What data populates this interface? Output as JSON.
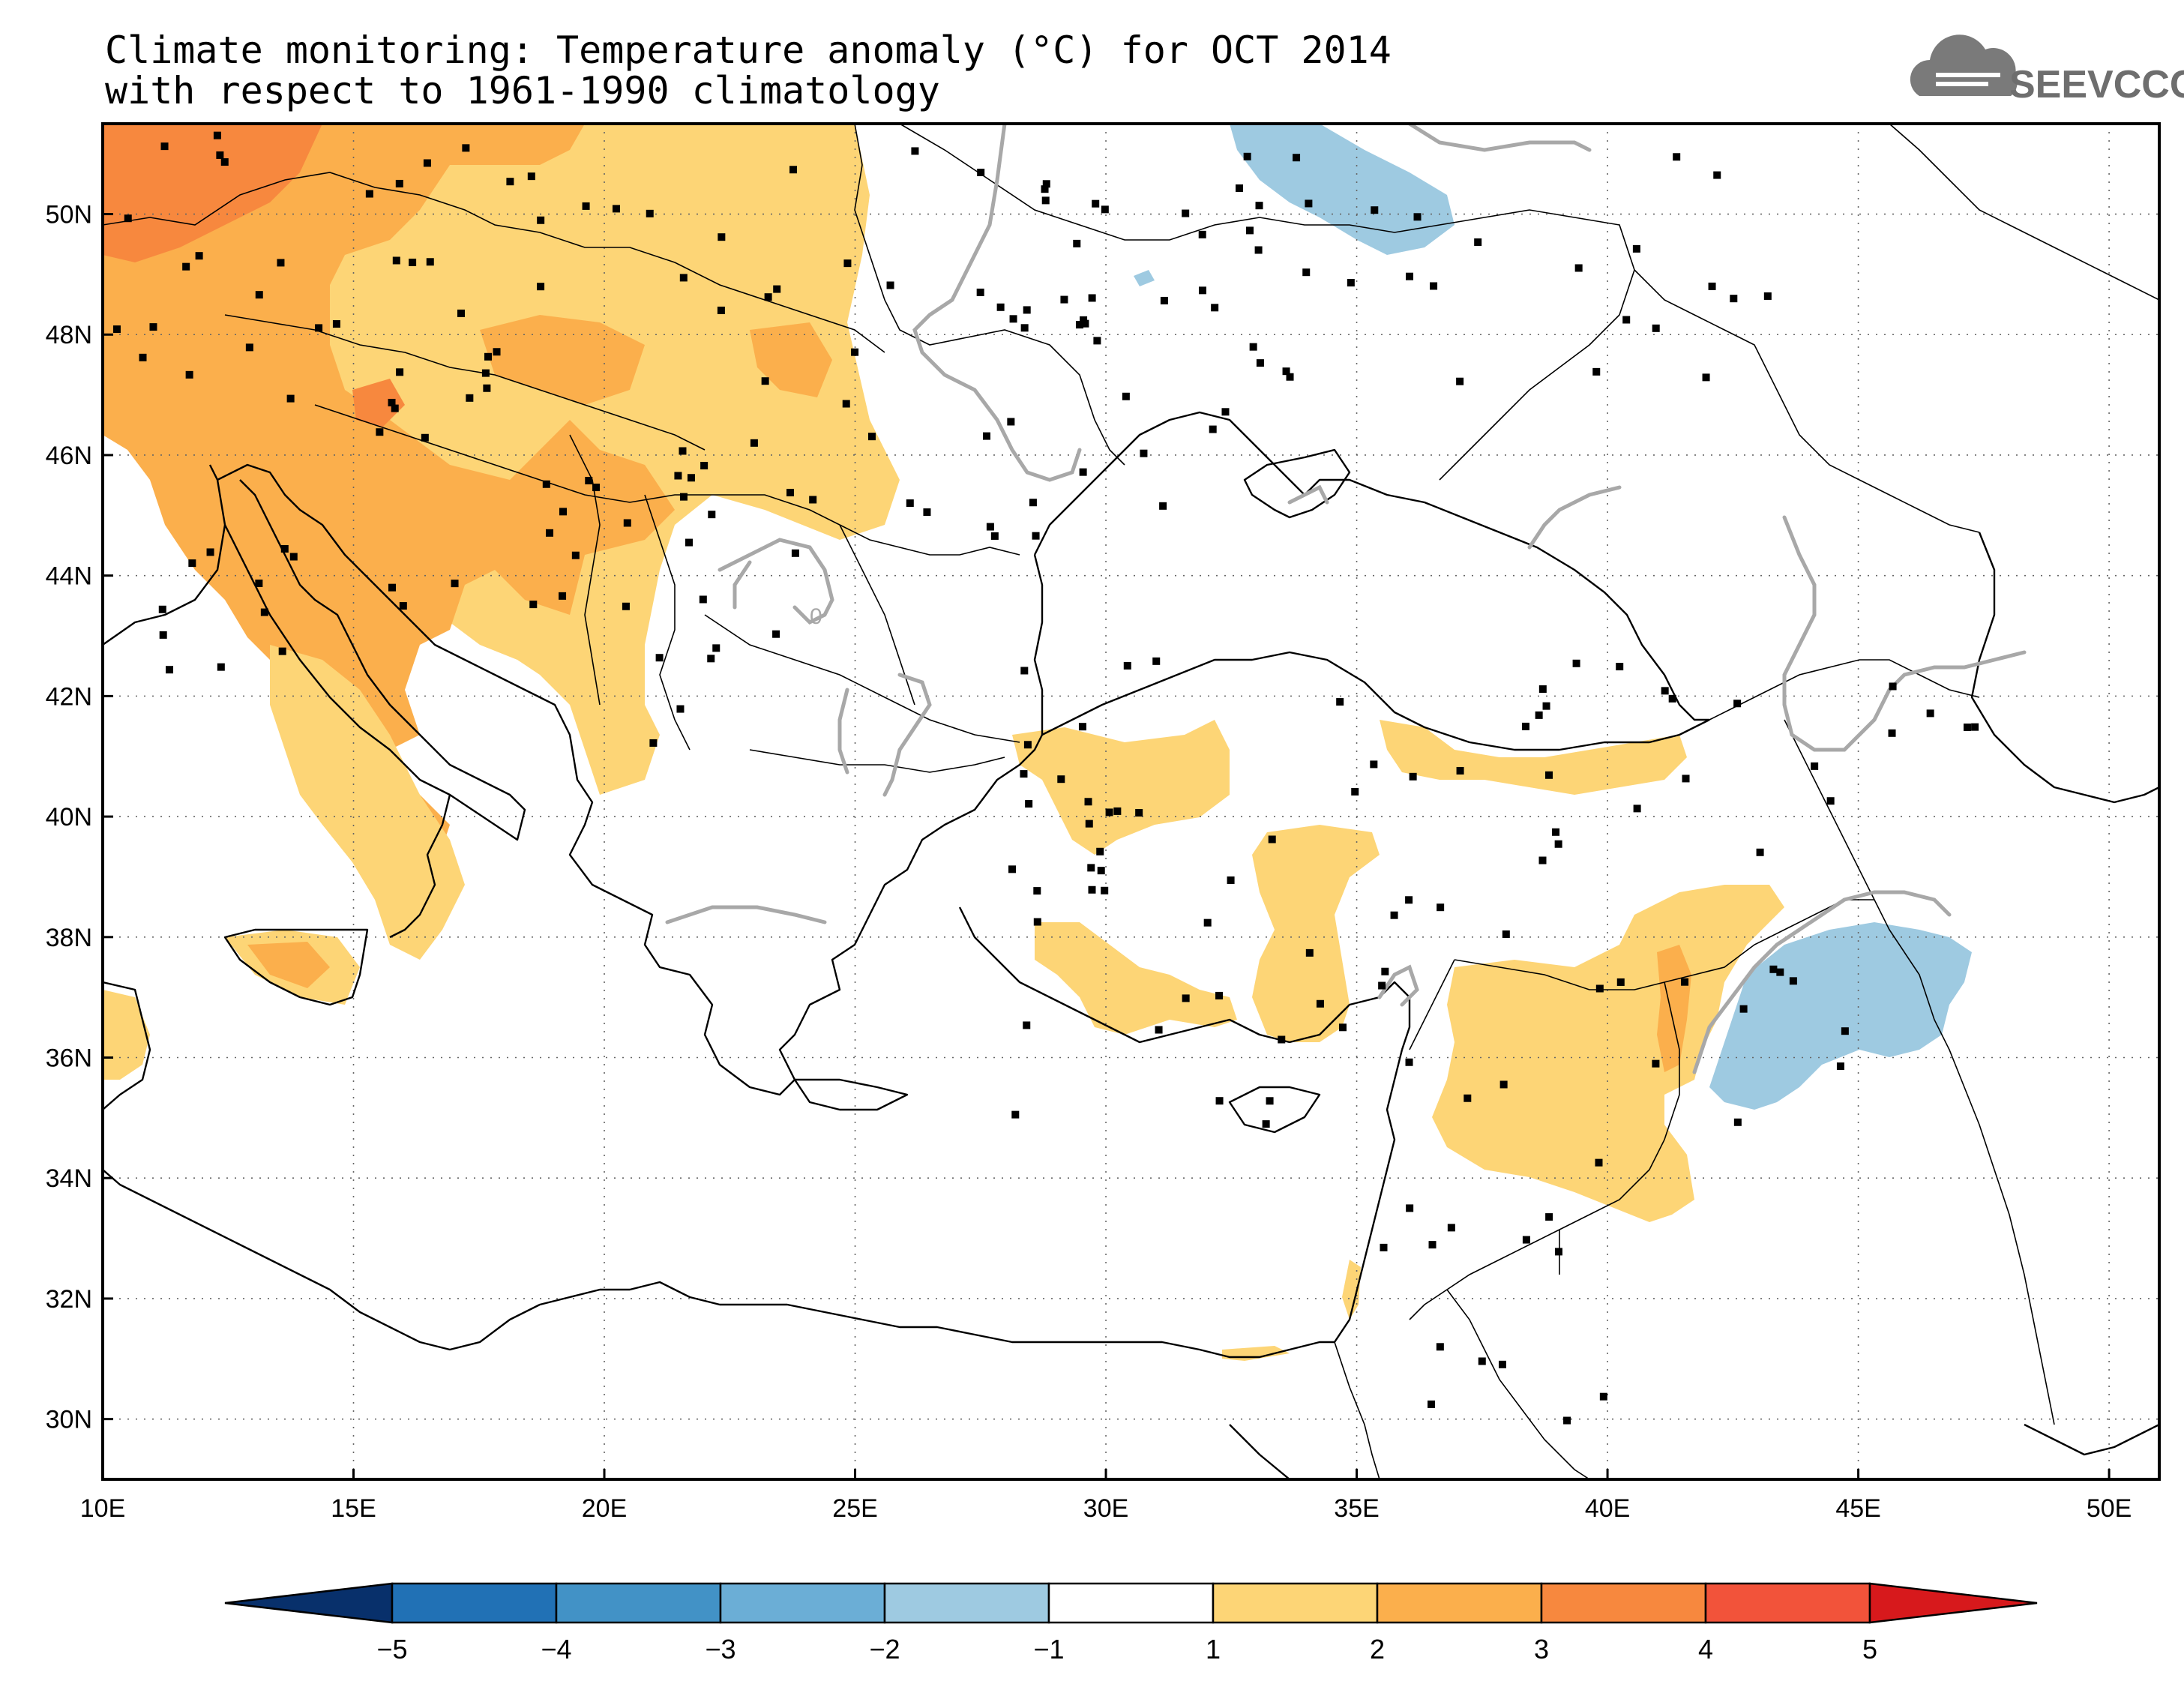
{
  "title": {
    "line1": "Climate monitoring: Temperature anomaly (°C) for OCT 2014",
    "line2": "with respect to 1961-1990 climatology"
  },
  "logo": {
    "text": "SEEVCCC",
    "icon": "cloud-icon"
  },
  "map": {
    "lon_range": [
      10,
      51
    ],
    "lat_range": [
      29,
      51.5
    ],
    "x_ticks": [
      "10E",
      "15E",
      "20E",
      "25E",
      "30E",
      "35E",
      "40E",
      "45E",
      "50E"
    ],
    "y_ticks": [
      "50N",
      "48N",
      "46N",
      "44N",
      "42N",
      "40N",
      "38N",
      "36N",
      "34N",
      "32N",
      "30N"
    ],
    "contour_label": "0",
    "grid": "dotted",
    "colors": {
      "cold5": "#08306b",
      "cold4": "#2171b5",
      "cold3": "#4292c6",
      "cold2": "#6baed6",
      "cold1": "#9ecae1",
      "neutral": "#ffffff",
      "warm1": "#fdd576",
      "warm2": "#fbaf4c",
      "warm3": "#f7883e",
      "warm4": "#f2533a",
      "warm5": "#d7191c",
      "zero_line": "#a8a8a8"
    }
  },
  "colorbar": {
    "labels": [
      "-5",
      "-4",
      "-3",
      "-2",
      "-1",
      "1",
      "2",
      "3",
      "4",
      "5"
    ],
    "colors": [
      "#08306b",
      "#2171b5",
      "#4292c6",
      "#6baed6",
      "#9ecae1",
      "#ffffff",
      "#fdd576",
      "#fbaf4c",
      "#f7883e",
      "#f2533a",
      "#d7191c"
    ],
    "extend": "both"
  }
}
